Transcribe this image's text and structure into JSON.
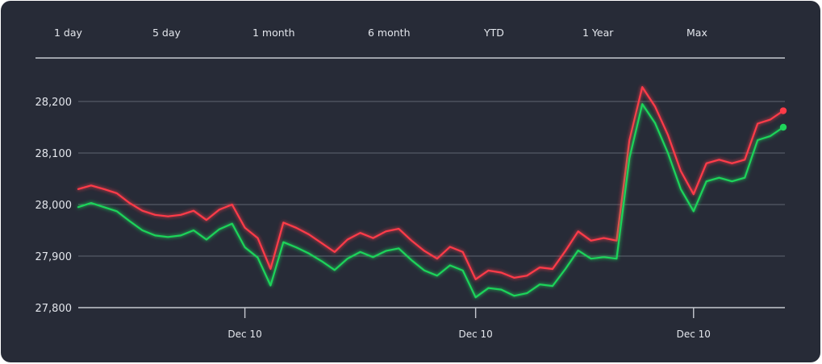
{
  "tabs": [
    "1 day",
    "5 day",
    "1 month",
    "6 month",
    "YTD",
    "1 Year",
    "Max"
  ],
  "colors": {
    "background": "#272b37",
    "series_red": "#ff3b48",
    "series_green": "#1fd45a",
    "text": "#e3e6ec"
  },
  "chart_data": {
    "type": "line",
    "title": "",
    "xlabel": "",
    "ylabel": "",
    "ylim": [
      27800,
      28200
    ],
    "yticks": [
      27800,
      27900,
      28000,
      28100,
      28200
    ],
    "ytick_labels": [
      "27,800",
      "27,900",
      "28,000",
      "28,100",
      "28,200"
    ],
    "xtick_labels": [
      "Dec 10",
      "Dec 10",
      "Dec 10"
    ],
    "xtick_index": [
      13,
      31,
      48
    ],
    "grid": true,
    "series": [
      {
        "color": "#ff3b48",
        "values": [
          28030,
          28037,
          28030,
          28022,
          28003,
          27988,
          27980,
          27977,
          27980,
          27988,
          27970,
          27990,
          28000,
          27955,
          27935,
          27875,
          27965,
          27955,
          27942,
          27925,
          27908,
          27932,
          27945,
          27935,
          27948,
          27953,
          27930,
          27910,
          27895,
          27918,
          27908,
          27855,
          27872,
          27868,
          27858,
          27862,
          27878,
          27875,
          27910,
          27948,
          27930,
          27935,
          27930,
          28125,
          28228,
          28190,
          28135,
          28065,
          28020,
          28080,
          28087,
          28080,
          28087,
          28157,
          28165,
          28182
        ]
      },
      {
        "color": "#1fd45a",
        "values": [
          27995,
          28003,
          27995,
          27987,
          27968,
          27950,
          27940,
          27937,
          27940,
          27950,
          27932,
          27952,
          27963,
          27917,
          27897,
          27843,
          27927,
          27917,
          27905,
          27890,
          27873,
          27895,
          27908,
          27898,
          27910,
          27915,
          27892,
          27872,
          27862,
          27882,
          27872,
          27820,
          27838,
          27835,
          27823,
          27828,
          27845,
          27842,
          27875,
          27911,
          27895,
          27898,
          27895,
          28090,
          28195,
          28158,
          28100,
          28030,
          27987,
          28045,
          28052,
          28045,
          28052,
          28125,
          28133,
          28150
        ]
      }
    ]
  }
}
